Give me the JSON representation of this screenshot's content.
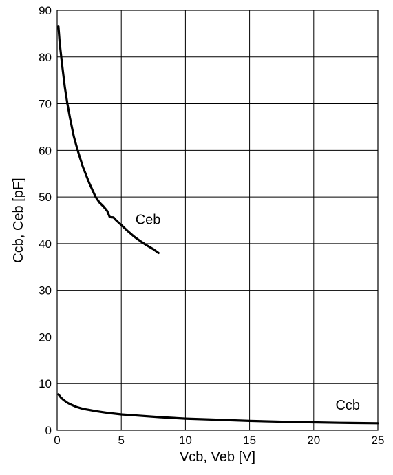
{
  "chart_data": {
    "type": "line",
    "xlabel": "Vcb, Veb [V]",
    "ylabel": "Ccb, Ceb [pF]",
    "xlim": [
      0,
      25
    ],
    "ylim": [
      0,
      90
    ],
    "xticks": [
      0,
      5,
      10,
      15,
      20,
      25
    ],
    "yticks": [
      0,
      10,
      20,
      30,
      40,
      50,
      60,
      70,
      80,
      90
    ],
    "grid": true,
    "series": [
      {
        "name": "Ceb",
        "x": [
          0.1,
          0.2,
          0.4,
          0.6,
          0.8,
          1.0,
          1.3,
          1.6,
          2.0,
          2.5,
          3.0,
          3.3,
          3.6,
          3.9,
          4.1,
          4.4,
          4.6,
          5.0,
          5.5,
          6.0,
          6.5,
          7.0,
          7.5,
          7.9
        ],
        "values": [
          86.5,
          83.0,
          78.0,
          73.5,
          70.0,
          67.0,
          63.0,
          60.0,
          56.5,
          53.0,
          50.0,
          48.8,
          48.0,
          47.0,
          45.7,
          45.6,
          45.0,
          44.0,
          42.7,
          41.5,
          40.5,
          39.6,
          38.8,
          38.0
        ]
      },
      {
        "name": "Ccb",
        "x": [
          0.1,
          0.3,
          0.5,
          0.8,
          1.0,
          1.5,
          2.0,
          3.0,
          4.0,
          5.0,
          6.0,
          8.0,
          10.0,
          12.0,
          15.0,
          18.0,
          20.0,
          22.0,
          25.0
        ],
        "values": [
          7.7,
          7.0,
          6.5,
          5.9,
          5.6,
          5.0,
          4.6,
          4.1,
          3.7,
          3.4,
          3.2,
          2.8,
          2.5,
          2.3,
          2.0,
          1.8,
          1.7,
          1.6,
          1.5
        ]
      }
    ]
  }
}
